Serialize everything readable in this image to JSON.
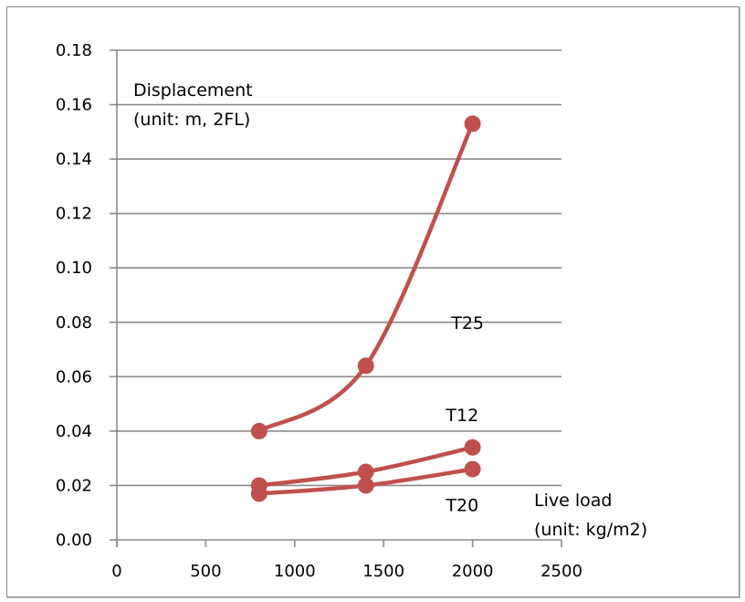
{
  "chart_data": {
    "type": "line",
    "title": "",
    "xlabel": "Live load (unit: kg/m2)",
    "ylabel": "Displacement (unit: m, 2FL)",
    "xlabel_lines": [
      "Live load",
      "(unit: kg/m2)"
    ],
    "ylabel_lines": [
      "Displacement",
      "(unit: m, 2FL)"
    ],
    "xlim": [
      0,
      2500
    ],
    "ylim": [
      0,
      0.18
    ],
    "xticks": [
      0,
      500,
      1000,
      1500,
      2000,
      2500
    ],
    "yticks": [
      0.0,
      0.02,
      0.04,
      0.06,
      0.08,
      0.1,
      0.12,
      0.14,
      0.16,
      0.18
    ],
    "xtick_labels": [
      "0",
      "500",
      "1000",
      "1500",
      "2000",
      "2500"
    ],
    "ytick_labels": [
      "0.00",
      "0.02",
      "0.04",
      "0.06",
      "0.08",
      "0.10",
      "0.12",
      "0.14",
      "0.16",
      "0.18"
    ],
    "grid": "horizontal",
    "legend": "none (series labeled inline)",
    "line_color": "#c0504d",
    "smoothed": true,
    "series": [
      {
        "name": "T25",
        "x": [
          800,
          1400,
          2000
        ],
        "values": [
          0.04,
          0.064,
          0.153
        ],
        "label_at": [
          1880,
          0.08
        ]
      },
      {
        "name": "T12",
        "x": [
          800,
          1400,
          2000
        ],
        "values": [
          0.02,
          0.025,
          0.034
        ],
        "label_at": [
          1850,
          0.046
        ]
      },
      {
        "name": "T20",
        "x": [
          800,
          1400,
          2000
        ],
        "values": [
          0.017,
          0.02,
          0.026
        ],
        "label_at": [
          1850,
          0.013
        ]
      }
    ]
  }
}
